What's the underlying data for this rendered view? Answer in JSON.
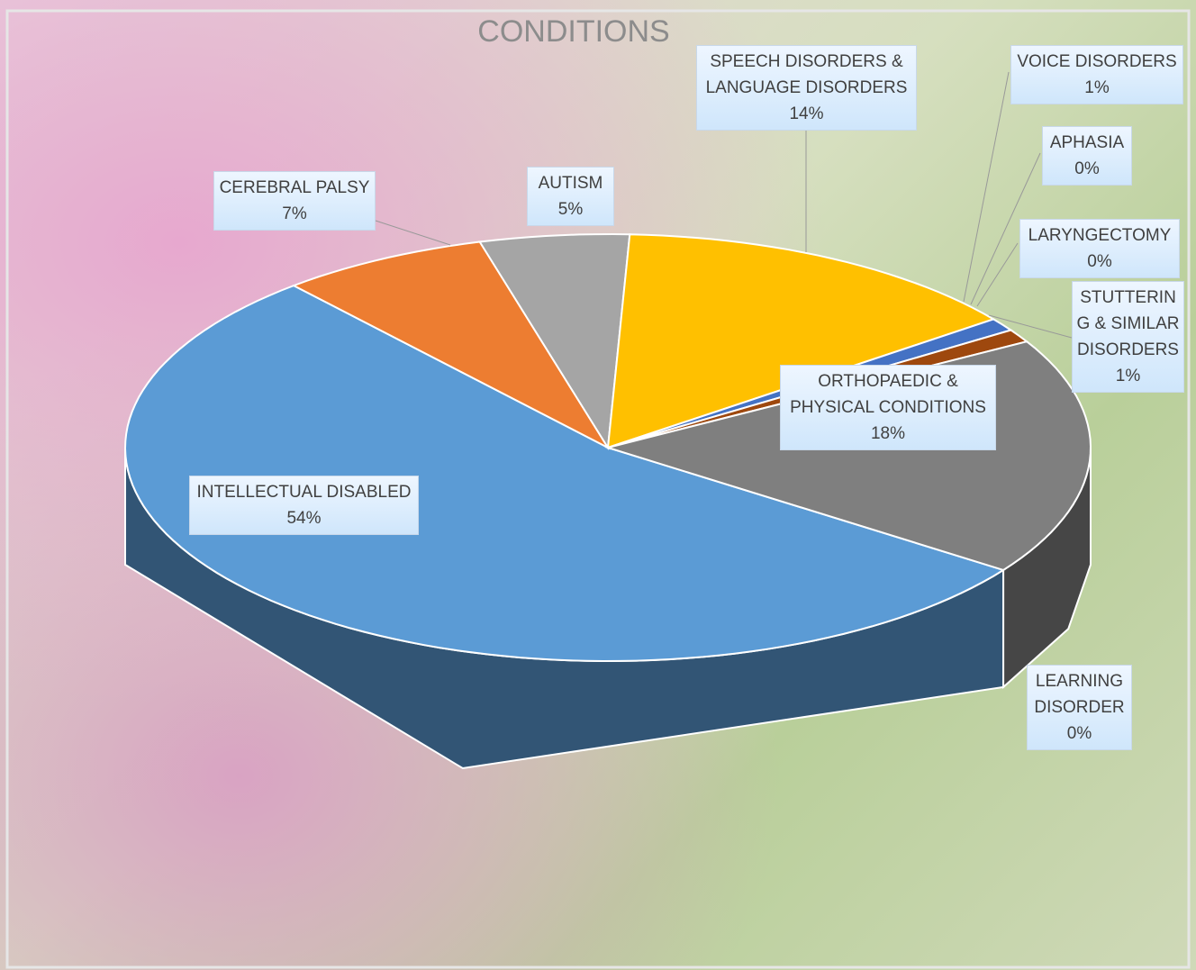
{
  "chart_data": {
    "type": "pie3d",
    "title": "CONDITIONS",
    "categories": [
      "INTELLECTUAL DISABLED",
      "CEREBRAL PALSY",
      "AUTISM",
      "SPEECH DISORDERS & LANGUAGE DISORDERS",
      "VOICE DISORDERS",
      "APHASIA",
      "LARYNGECTOMY",
      "STUTTERING & SIMILAR DISORDERS",
      "ORTHOPAEDIC & PHYSICAL CONDITIONS",
      "LEARNING DISORDER"
    ],
    "values": [
      54,
      7,
      5,
      14,
      1,
      0,
      0,
      1,
      18,
      0
    ],
    "value_labels": [
      "54%",
      "7%",
      "5%",
      "14%",
      "1%",
      "0%",
      "0%",
      "1%",
      "18%",
      "0%"
    ],
    "colors": [
      "#5b9bd5",
      "#ed7d31",
      "#a5a5a5",
      "#ffc000",
      "#4472c4",
      "#70ad47",
      "#264478",
      "#9e480e",
      "#7f7f7f",
      "#333333"
    ]
  }
}
